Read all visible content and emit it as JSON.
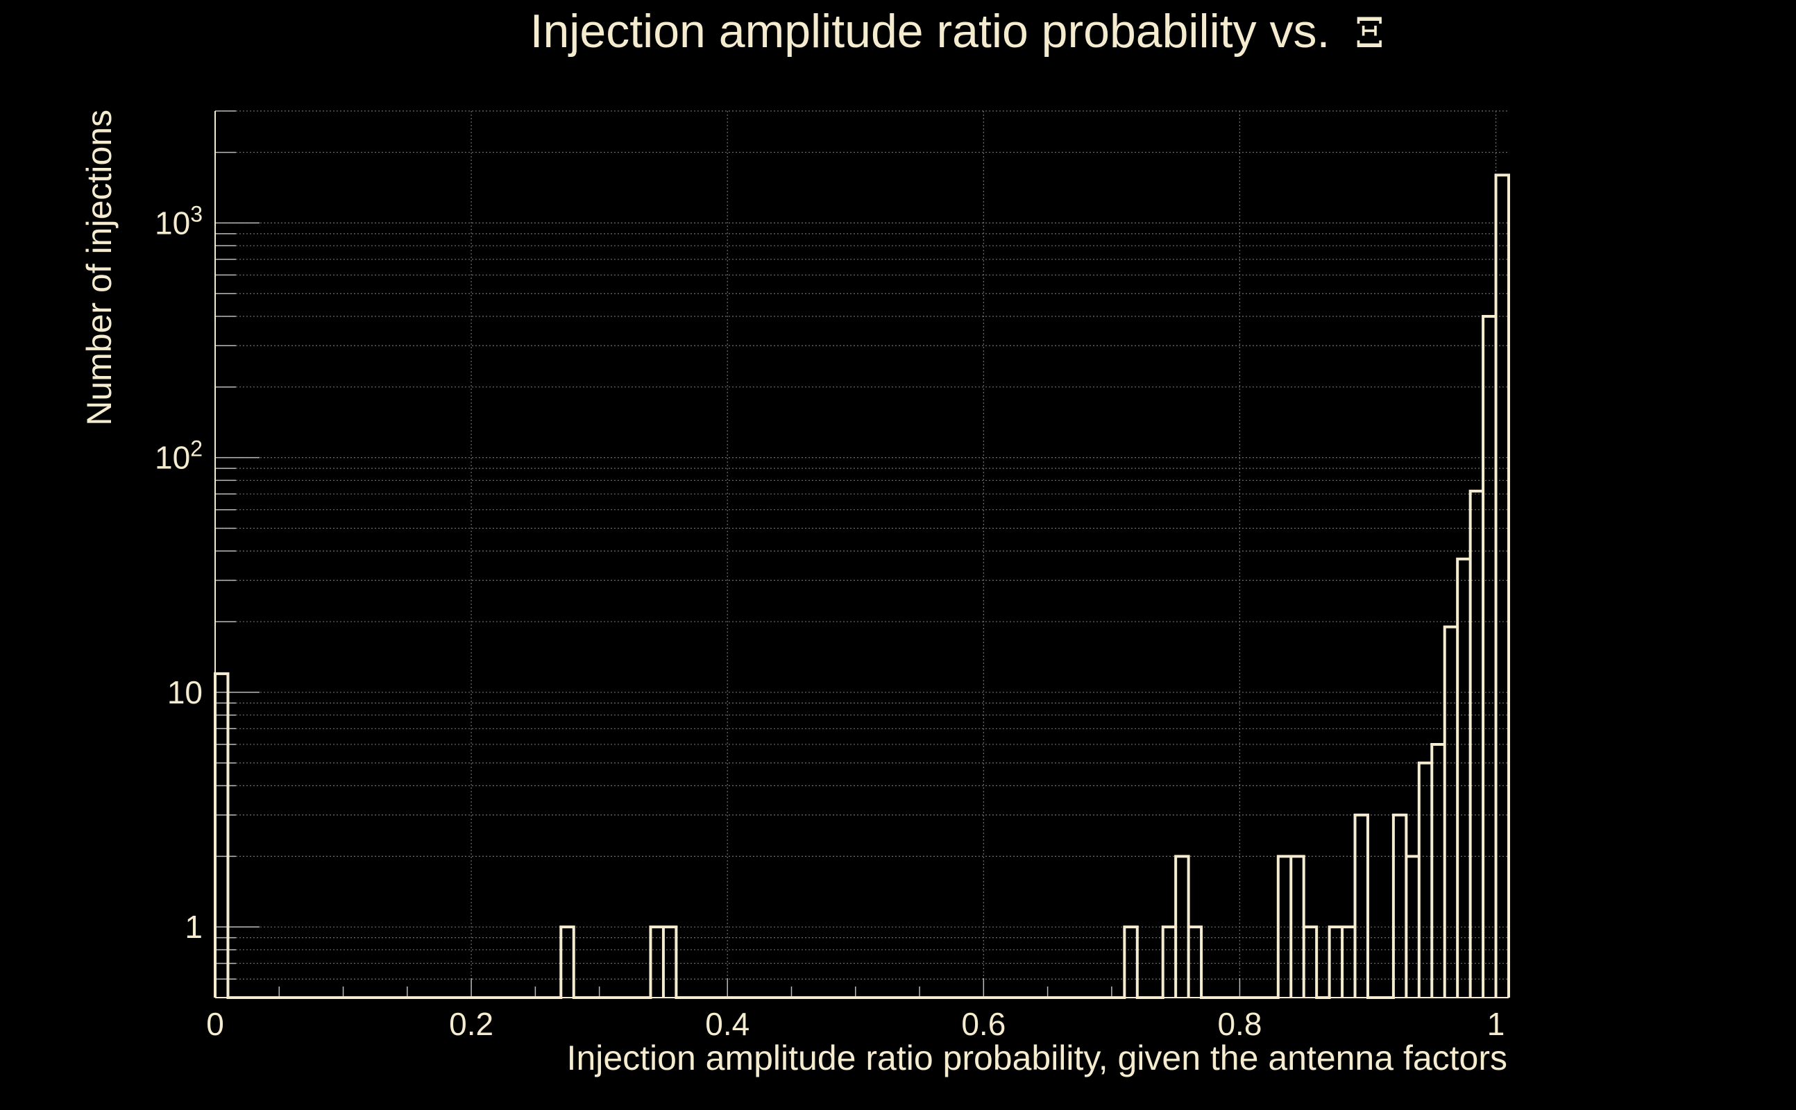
{
  "chart_data": {
    "type": "histogram",
    "title": "Injection amplitude ratio probability vs.",
    "title_symbol": "Ξ",
    "xlabel": "Injection amplitude ratio probability, given the antenna factors",
    "ylabel": "Number of injections",
    "xlim": [
      0,
      1.01
    ],
    "ylim_log": [
      0.5,
      3000
    ],
    "yscale": "log",
    "grid": true,
    "x_ticks": [
      {
        "value": 0,
        "label": "0"
      },
      {
        "value": 0.2,
        "label": "0.2"
      },
      {
        "value": 0.4,
        "label": "0.4"
      },
      {
        "value": 0.6,
        "label": "0.6"
      },
      {
        "value": 0.8,
        "label": "0.8"
      },
      {
        "value": 1,
        "label": "1"
      }
    ],
    "y_ticks": [
      {
        "value": 1,
        "label": "1"
      },
      {
        "value": 10,
        "label": "10"
      },
      {
        "value": 100,
        "label": "10",
        "exp": "2"
      },
      {
        "value": 1000,
        "label": "10",
        "exp": "3"
      }
    ],
    "bin_width": 0.01,
    "bins": [
      {
        "x": 0.0,
        "count": 12
      },
      {
        "x": 0.27,
        "count": 1
      },
      {
        "x": 0.34,
        "count": 1
      },
      {
        "x": 0.35,
        "count": 1
      },
      {
        "x": 0.71,
        "count": 1
      },
      {
        "x": 0.74,
        "count": 1
      },
      {
        "x": 0.75,
        "count": 2
      },
      {
        "x": 0.76,
        "count": 1
      },
      {
        "x": 0.83,
        "count": 2
      },
      {
        "x": 0.84,
        "count": 2
      },
      {
        "x": 0.85,
        "count": 1
      },
      {
        "x": 0.87,
        "count": 1
      },
      {
        "x": 0.88,
        "count": 1
      },
      {
        "x": 0.89,
        "count": 3
      },
      {
        "x": 0.92,
        "count": 3
      },
      {
        "x": 0.93,
        "count": 2
      },
      {
        "x": 0.94,
        "count": 5
      },
      {
        "x": 0.95,
        "count": 6
      },
      {
        "x": 0.96,
        "count": 19
      },
      {
        "x": 0.97,
        "count": 37
      },
      {
        "x": 0.98,
        "count": 72
      },
      {
        "x": 0.99,
        "count": 400
      },
      {
        "x": 1.0,
        "count": 1600
      }
    ]
  }
}
